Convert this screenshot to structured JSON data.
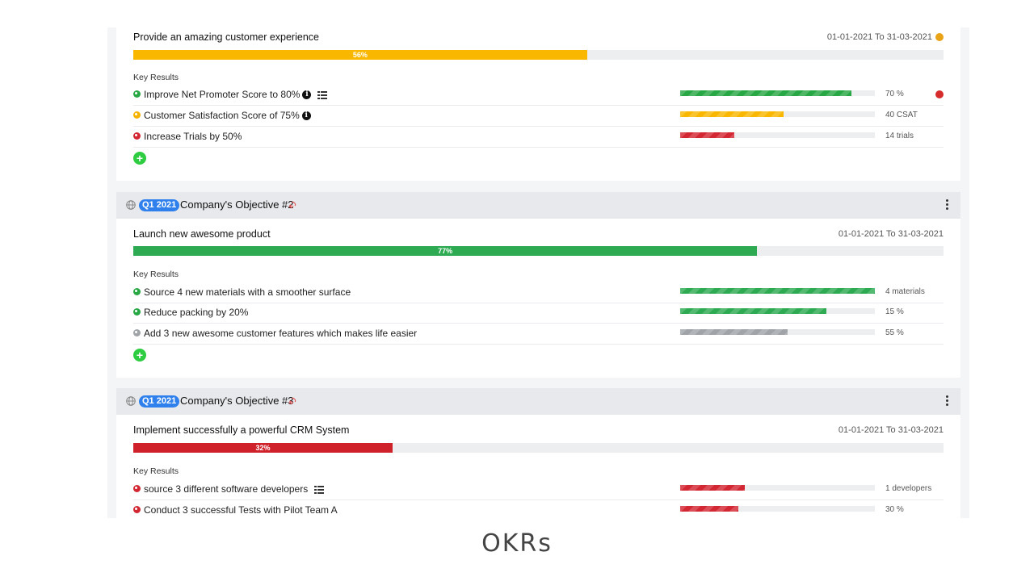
{
  "colors": {
    "on_track": "#28a745",
    "at_risk": "#f5b300",
    "behind": "#d32733",
    "neutral": "#a0a4a8",
    "badge": "#2f80ed",
    "add": "#2ecc40"
  },
  "key_results_label": "Key Results",
  "objectives": [
    {
      "header": null,
      "title": "Provide an amazing customer experience",
      "date_range": "01-01-2021 To 31-03-2021",
      "progress_label": "56%",
      "progress": 56,
      "progress_color": "#f5b300",
      "status_dot_color": "#e8a317",
      "key_results": [
        {
          "title": "Improve Net Promoter Score to 80%",
          "status": "on_track",
          "has_info": true,
          "has_list": true,
          "progress": 88,
          "color": "#28a745",
          "value": "70 %",
          "alert": true
        },
        {
          "title": "Customer Satisfaction Score of 75%",
          "status": "at_risk",
          "has_info": true,
          "has_list": false,
          "progress": 53,
          "color": "#f5b300",
          "value": "40 CSAT",
          "alert": false
        },
        {
          "title": "Increase Trials by 50%",
          "status": "behind",
          "has_info": false,
          "has_list": false,
          "progress": 28,
          "color": "#d32733",
          "value": "14 trials",
          "alert": false
        }
      ]
    },
    {
      "header": {
        "quarter": "Q1 2021",
        "name": "Company's Objective #2",
        "link_icon": "link-icon"
      },
      "title": "Launch new awesome product",
      "date_range": "01-01-2021 To 31-03-2021",
      "progress_label": "77%",
      "progress": 77,
      "progress_color": "#28a745",
      "key_results": [
        {
          "title": "Source 4 new materials with a smoother surface",
          "status": "on_track",
          "has_info": false,
          "has_list": false,
          "progress": 100,
          "color": "#28a745",
          "value": "4 materials",
          "alert": false
        },
        {
          "title": "Reduce packing by 20%",
          "status": "on_track",
          "has_info": false,
          "has_list": false,
          "progress": 75,
          "color": "#28a745",
          "value": "15 %",
          "alert": false
        },
        {
          "title": "Add 3 new awesome customer features which makes life easier",
          "status": "neutral",
          "has_info": false,
          "has_list": false,
          "progress": 55,
          "color": "#a0a4a8",
          "value": "55 %",
          "alert": false
        }
      ]
    },
    {
      "header": {
        "quarter": "Q1 2021",
        "name": "Company's Objective #3",
        "link_icon": "link-icon"
      },
      "title": "Implement successfully a powerful CRM System",
      "date_range": "01-01-2021 To 31-03-2021",
      "progress_label": "32%",
      "progress": 32,
      "progress_color": "#d32733",
      "key_results": [
        {
          "title": "source 3 different software developers",
          "status": "behind",
          "has_info": false,
          "has_list": true,
          "progress": 33,
          "color": "#d32733",
          "value": "1 developers",
          "alert": false
        },
        {
          "title": "Conduct 3 successful Tests with Pilot Team A",
          "status": "behind",
          "has_info": false,
          "has_list": false,
          "progress": 30,
          "color": "#d32733",
          "value": "30 %",
          "alert": false
        }
      ]
    }
  ],
  "footer_title": "OKRs"
}
